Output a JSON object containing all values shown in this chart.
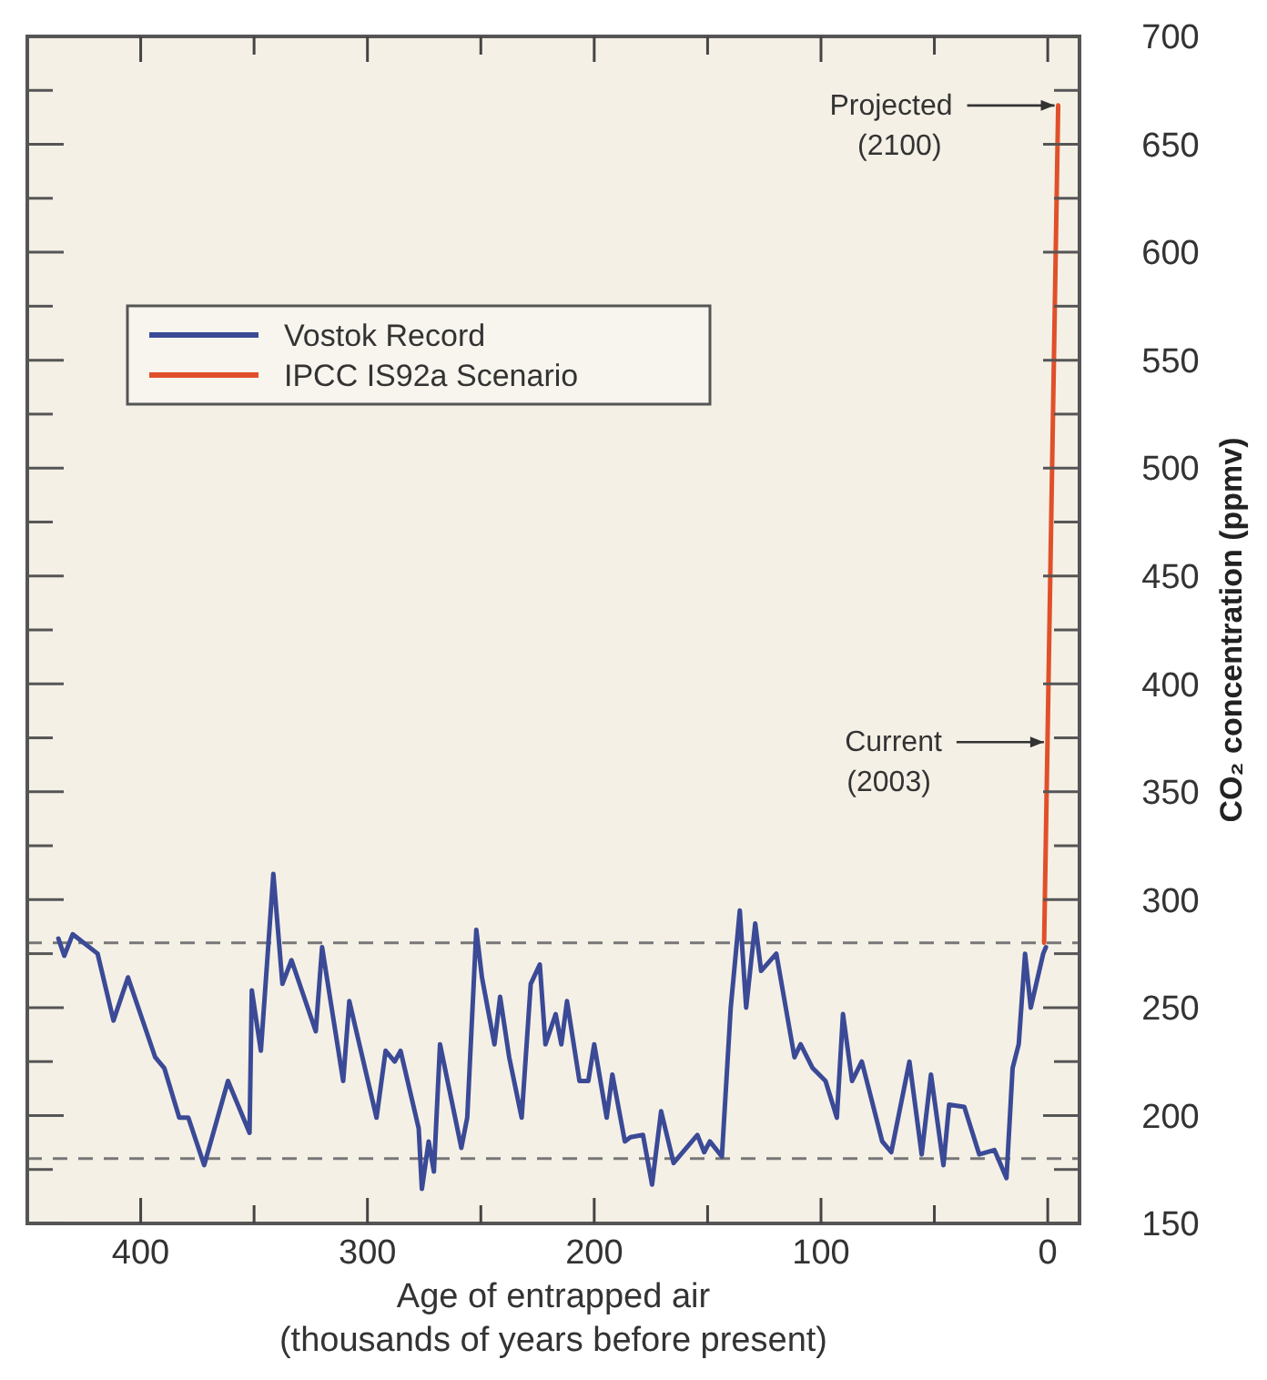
{
  "chart_data": {
    "type": "line",
    "xlabel": "Age of entrapped air\n(thousands of years before present)",
    "ylabel": "CO₂ concentration (ppmv)",
    "xlim": [
      450,
      -14
    ],
    "ylim": [
      150,
      700
    ],
    "xticks": [
      400,
      {
        "value": 350,
        "label": null
      },
      300,
      {
        "value": 250,
        "label": null
      },
      200,
      {
        "value": 150,
        "label": null
      },
      100,
      {
        "value": 50,
        "label": null
      },
      0
    ],
    "yticks": [
      150,
      {
        "value": 175,
        "label": null
      },
      200,
      {
        "value": 225,
        "label": null
      },
      250,
      {
        "value": 275,
        "label": null
      },
      300,
      {
        "value": 325,
        "label": null
      },
      350,
      {
        "value": 375,
        "label": null
      },
      400,
      {
        "value": 425,
        "label": null
      },
      450,
      {
        "value": 475,
        "label": null
      },
      500,
      {
        "value": 525,
        "label": null
      },
      550,
      {
        "value": 575,
        "label": null
      },
      600,
      {
        "value": 625,
        "label": null
      },
      650,
      {
        "value": 675,
        "label": null
      },
      700
    ],
    "series": [
      {
        "name": "Vostok Record",
        "color": "#3b4a96",
        "x": [
          436.3,
          433.7,
          430,
          419,
          412,
          405.6,
          393.6,
          389.6,
          383,
          379,
          372,
          361.5,
          352,
          351,
          347,
          341.5,
          337.5,
          333.5,
          322.8,
          320,
          310.7,
          308,
          296,
          292,
          288,
          285.4,
          277.4,
          276,
          273,
          270.7,
          268,
          262.7,
          258.6,
          256,
          252,
          249.5,
          244,
          241.5,
          237.5,
          232,
          228,
          224,
          221.5,
          217,
          214.5,
          212,
          206.5,
          202.6,
          200,
          194.5,
          192,
          186.5,
          184,
          178.5,
          174.5,
          170.5,
          165,
          154.5,
          151.5,
          149,
          143.7,
          139.8,
          135.8,
          133,
          129,
          126.4,
          119.7,
          111.7,
          109,
          103.7,
          98,
          93,
          90.3,
          86.3,
          82,
          73,
          69,
          61,
          55.6,
          51.5,
          46,
          43.5,
          36.8,
          30.2,
          23.5,
          18.2,
          15.5,
          12.8,
          10,
          7.5,
          2,
          0.8
        ],
        "values": [
          282,
          274,
          284,
          275,
          244,
          264,
          227,
          222,
          199,
          199,
          177,
          216,
          192,
          258,
          230,
          312,
          261,
          272,
          239,
          278,
          216,
          253,
          199,
          230,
          225,
          230,
          194,
          166,
          188,
          174,
          233,
          206,
          185,
          199,
          286,
          264,
          233,
          255,
          227,
          199,
          261,
          270,
          233,
          247,
          233,
          253,
          216,
          216,
          233,
          199,
          219,
          188,
          190,
          191,
          168,
          202,
          178,
          191,
          183,
          188,
          181,
          250,
          295,
          250,
          289,
          267,
          275,
          227,
          233,
          222,
          216,
          199,
          247,
          216,
          225,
          188,
          183,
          225,
          182,
          219,
          177,
          205,
          204,
          182,
          184,
          171,
          222,
          233,
          275,
          250,
          275,
          278
        ]
      },
      {
        "name": "IPCC IS92a Scenario",
        "color": "#e0502a",
        "x": [
          1.6,
          -4.6
        ],
        "values": [
          280,
          668
        ]
      }
    ],
    "ref_lines": [
      {
        "axis": "y",
        "value": 280,
        "color": "#777777",
        "line_style": "dashed"
      },
      {
        "axis": "y",
        "value": 180,
        "color": "#777777",
        "line_style": "dashed"
      }
    ],
    "annotations": [
      {
        "text": "Projected\n(2100)",
        "x": -4.6,
        "y": 668
      },
      {
        "text": "Current\n(2003)",
        "x": 0.1,
        "y": 373
      }
    ],
    "legend": "top left",
    "grid": false,
    "line_style": "solid",
    "marker": "none"
  }
}
